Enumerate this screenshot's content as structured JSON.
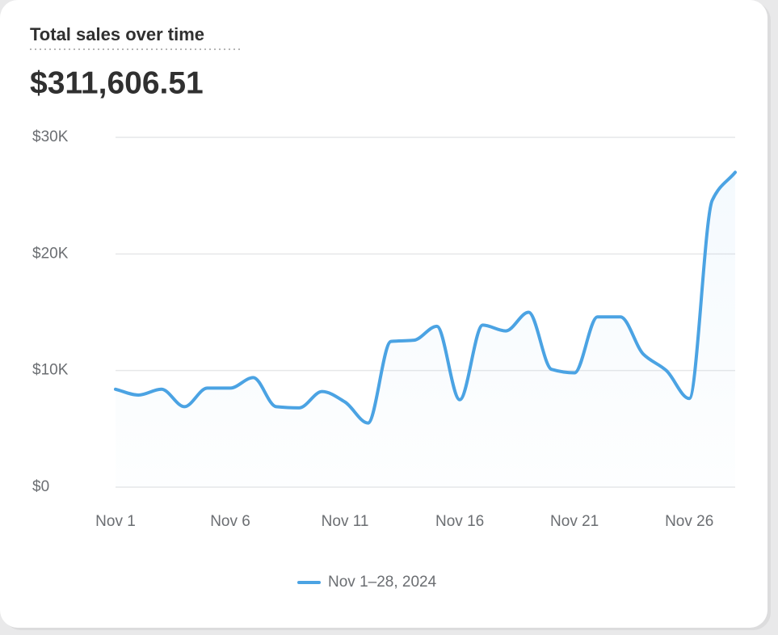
{
  "chart_data": {
    "type": "line",
    "title": "Total sales over time",
    "subtitle": "$311,606.51",
    "categories": [
      "Nov 1",
      null,
      null,
      null,
      null,
      "Nov 6",
      null,
      null,
      null,
      null,
      "Nov 11",
      null,
      null,
      null,
      null,
      "Nov 16",
      null,
      null,
      null,
      null,
      "Nov 21",
      null,
      null,
      null,
      null,
      "Nov 26",
      null,
      null
    ],
    "series": [
      {
        "name": "Nov 1–28, 2024",
        "color": "#4ba3e3",
        "values": [
          8400,
          7900,
          8400,
          6900,
          8500,
          8500,
          9400,
          6900,
          6800,
          8200,
          7300,
          5500,
          12500,
          12600,
          13800,
          7500,
          13900,
          13400,
          15000,
          10100,
          9800,
          14600,
          14600,
          11400,
          10000,
          7600,
          24600,
          27000
        ]
      }
    ],
    "ylim": [
      0,
      30000
    ],
    "yticks": [
      {
        "value": 0,
        "label": "$0"
      },
      {
        "value": 10000,
        "label": "$10K"
      },
      {
        "value": 20000,
        "label": "$20K"
      },
      {
        "value": 30000,
        "label": "$30K"
      }
    ],
    "grid": true
  }
}
